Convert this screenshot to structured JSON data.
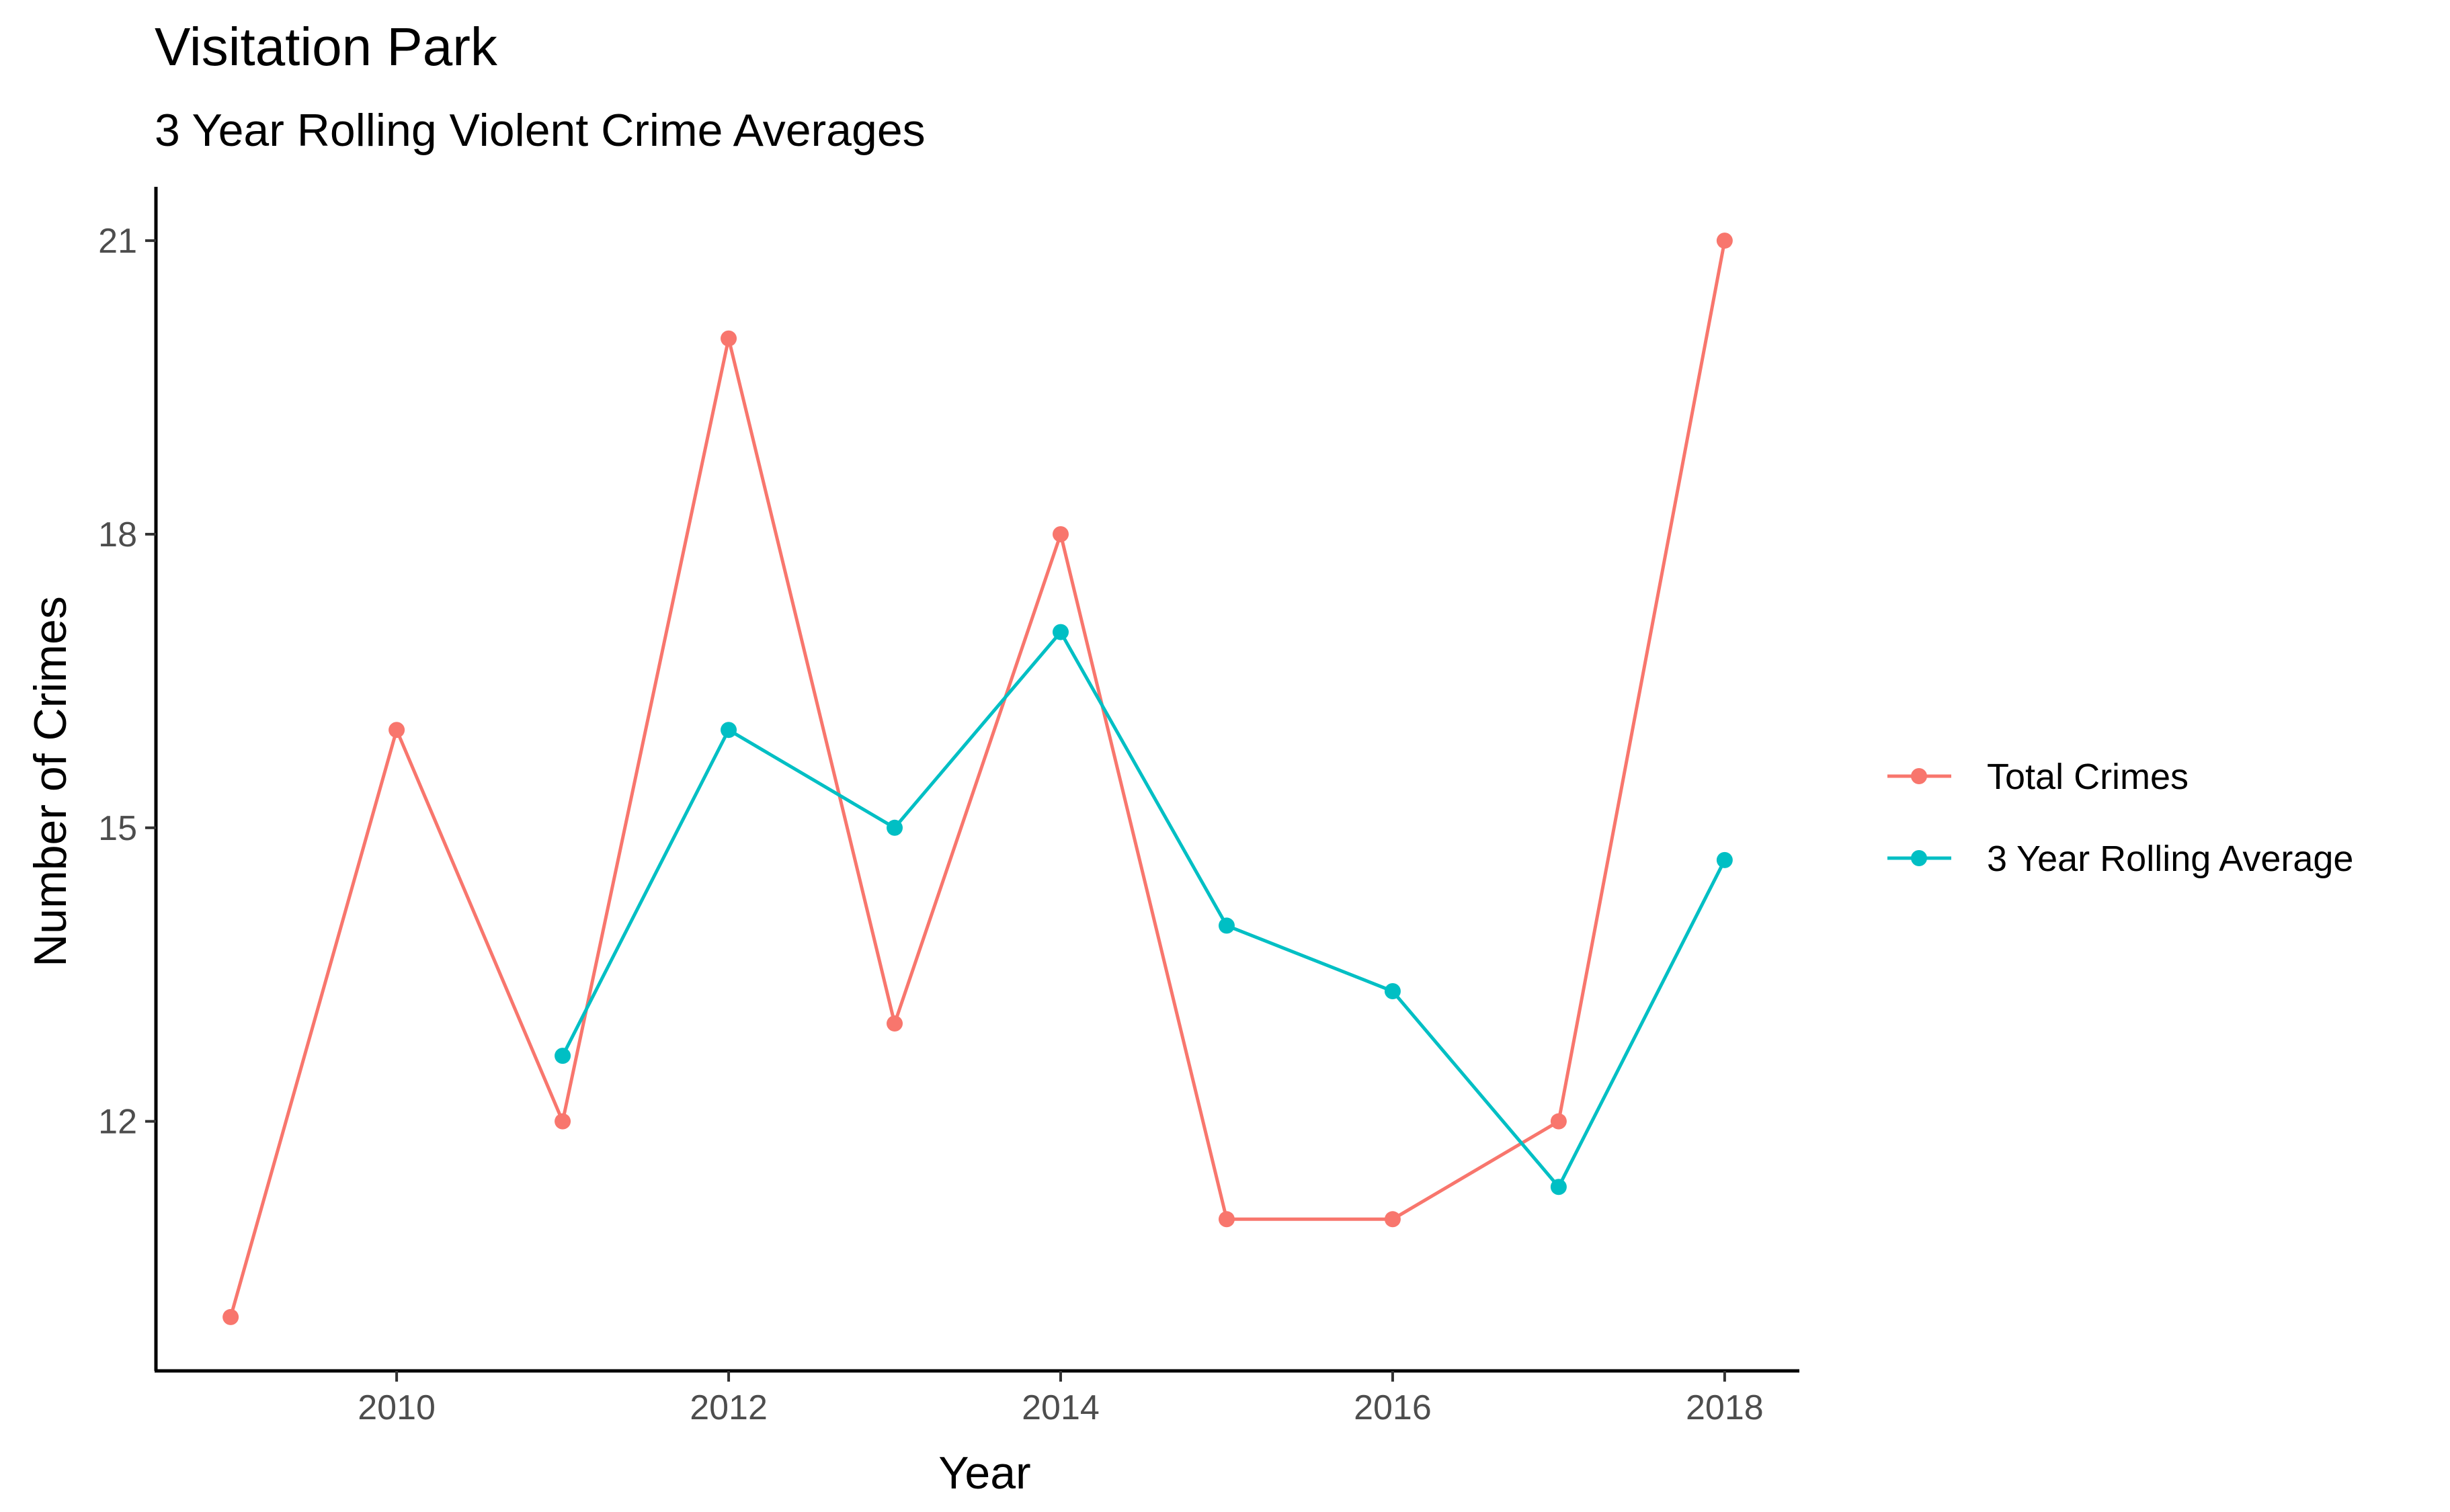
{
  "chart_data": {
    "type": "line",
    "title": "Visitation Park",
    "subtitle": "3 Year Rolling Violent Crime Averages",
    "xlabel": "Year",
    "ylabel": "Number of Crimes",
    "x": [
      2009,
      2010,
      2011,
      2012,
      2013,
      2014,
      2015,
      2016,
      2017,
      2018
    ],
    "xticks": [
      2010,
      2012,
      2014,
      2016,
      2018
    ],
    "yticks": [
      12,
      15,
      18,
      21
    ],
    "xlim": [
      2008.55,
      2018.45
    ],
    "ylim": [
      9.45,
      21.55
    ],
    "grid": false,
    "legend_position": "right",
    "series": [
      {
        "name": "Total Crimes",
        "color": "#F8766D",
        "values": [
          10,
          16,
          12,
          20,
          13,
          18,
          11,
          11,
          12,
          21
        ]
      },
      {
        "name": "3 Year Rolling Average",
        "color": "#00BFC4",
        "values": [
          null,
          null,
          12.67,
          16,
          15,
          17,
          14,
          13.33,
          11.33,
          14.67
        ]
      }
    ]
  }
}
